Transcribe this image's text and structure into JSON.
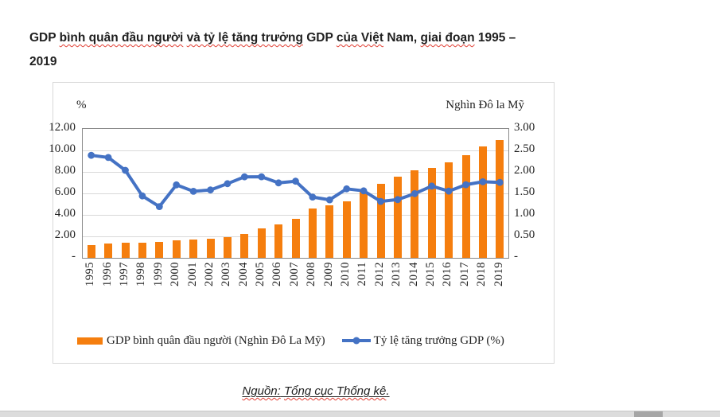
{
  "page": {
    "title": {
      "line1_segments": [
        {
          "text": "GDP ",
          "misspelled": false
        },
        {
          "text": "bình quân đầu người",
          "misspelled": true
        },
        {
          "text": " ",
          "misspelled": false
        },
        {
          "text": "và tỷ lệ tăng trưởng",
          "misspelled": true
        },
        {
          "text": " GDP ",
          "misspelled": false
        },
        {
          "text": "của Việt",
          "misspelled": true
        },
        {
          "text": " Nam, ",
          "misspelled": false
        },
        {
          "text": "giai đoạn",
          "misspelled": true
        },
        {
          "text": " 1995 –",
          "misspelled": false
        }
      ],
      "line2": "2019"
    },
    "source": {
      "segments": [
        {
          "text": "Nguồn:",
          "misspelled": true
        },
        {
          "text": " ",
          "misspelled": false
        },
        {
          "text": "Tổng cục Thống kê",
          "misspelled": true
        },
        {
          "text": ".",
          "misspelled": false
        }
      ]
    }
  },
  "chart": {
    "left_axis_title": "%",
    "right_axis_title": "Nghìn Đô la Mỹ",
    "left_axis_ticks": [
      "12.00",
      "10.00",
      "8.00",
      "6.00",
      "4.00",
      "2.00",
      "-"
    ],
    "right_axis_ticks": [
      "3.00",
      "2.50",
      "2.00",
      "1.50",
      "1.00",
      "0.50",
      "-"
    ],
    "legend": [
      {
        "label": "GDP bình quân đầu người (Nghìn  Đô La Mỹ)",
        "marker": "bar",
        "color": "#F57E0E"
      },
      {
        "label": "Tỷ lệ tăng trưởng GDP (%)",
        "marker": "line",
        "color": "#4472C4"
      }
    ],
    "colors": {
      "bar": "#F57E0E",
      "line": "#4472C4",
      "gridline": "#D9D9D9",
      "axis": "#898989",
      "frame_border": "#D9D9D9"
    }
  },
  "chart_data": {
    "type": "combo",
    "title": "GDP bình quân đầu người và tỷ lệ tăng trưởng GDP của Việt Nam, giai đoạn 1995 – 2019",
    "categories": [
      "1995",
      "1996",
      "1997",
      "1998",
      "1999",
      "2000",
      "2001",
      "2002",
      "2003",
      "2004",
      "2005",
      "2006",
      "2007",
      "2008",
      "2009",
      "2010",
      "2011",
      "2012",
      "2013",
      "2014",
      "2015",
      "2016",
      "2017",
      "2018",
      "2019"
    ],
    "series": [
      {
        "name": "GDP bình quân đầu người (Nghìn  Đô La Mỹ)",
        "type": "bar",
        "axis": "right",
        "values": [
          0.29,
          0.34,
          0.36,
          0.36,
          0.37,
          0.4,
          0.42,
          0.44,
          0.49,
          0.56,
          0.69,
          0.78,
          0.9,
          1.15,
          1.22,
          1.32,
          1.54,
          1.72,
          1.89,
          2.04,
          2.09,
          2.22,
          2.39,
          2.59,
          2.74
        ]
      },
      {
        "name": "Tỷ lệ tăng trưởng GDP (%)",
        "type": "line",
        "axis": "left",
        "values": [
          9.54,
          9.34,
          8.15,
          5.76,
          4.77,
          6.79,
          6.19,
          6.32,
          6.9,
          7.54,
          7.55,
          6.98,
          7.13,
          5.66,
          5.4,
          6.42,
          6.24,
          5.25,
          5.42,
          5.98,
          6.68,
          6.21,
          6.81,
          7.08,
          7.02
        ]
      }
    ],
    "left_axis": {
      "title": "%",
      "min": 0,
      "max": 12,
      "step": 2
    },
    "right_axis": {
      "title": "Nghìn Đô la Mỹ",
      "min": 0,
      "max": 3,
      "step": 0.5
    },
    "legend_position": "bottom",
    "grid": true
  }
}
